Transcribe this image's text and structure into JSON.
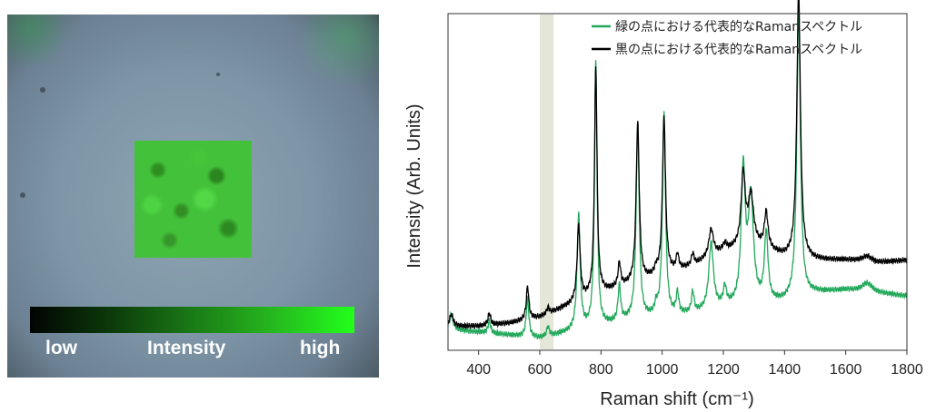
{
  "image_panel": {
    "colorbar_labels": {
      "low": "low",
      "mid": "Intensity",
      "high": "high"
    }
  },
  "chart_data": {
    "type": "line",
    "xlabel": "Raman shift (cm⁻¹)",
    "ylabel": "Intensity (Arb. Units)",
    "xlim": [
      300,
      1800
    ],
    "x_ticks": [
      400,
      600,
      800,
      1000,
      1200,
      1400,
      1600,
      1800
    ],
    "y_ticks": [],
    "grid": false,
    "legend_position": "top-right",
    "highlight_band": {
      "x0": 600,
      "x1": 645,
      "color": "#e4e6d8"
    },
    "series": [
      {
        "name": "緑の点における代表的なRamanスペクトル",
        "color": "#22a85a",
        "baseline": [
          [
            300,
            0.04
          ],
          [
            400,
            0.03
          ],
          [
            500,
            0.02
          ],
          [
            600,
            0.01
          ],
          [
            700,
            0.03
          ],
          [
            800,
            0.05
          ],
          [
            900,
            0.07
          ],
          [
            1000,
            0.08
          ],
          [
            1100,
            0.09
          ],
          [
            1200,
            0.11
          ],
          [
            1300,
            0.12
          ],
          [
            1400,
            0.13
          ],
          [
            1500,
            0.16
          ],
          [
            1600,
            0.17
          ],
          [
            1700,
            0.16
          ],
          [
            1800,
            0.15
          ]
        ],
        "peaks": [
          [
            311,
            0.05,
            7
          ],
          [
            435,
            0.04,
            5
          ],
          [
            560,
            0.13,
            5
          ],
          [
            627,
            0.03,
            5
          ],
          [
            727,
            0.38,
            6
          ],
          [
            783,
            0.88,
            5
          ],
          [
            860,
            0.12,
            5
          ],
          [
            920,
            0.64,
            6
          ],
          [
            980,
            0.03,
            5
          ],
          [
            1006,
            0.67,
            6
          ],
          [
            1050,
            0.07,
            5
          ],
          [
            1100,
            0.07,
            5
          ],
          [
            1160,
            0.22,
            9
          ],
          [
            1205,
            0.06,
            6
          ],
          [
            1265,
            0.44,
            8
          ],
          [
            1290,
            0.35,
            10
          ],
          [
            1340,
            0.23,
            7
          ],
          [
            1446,
            0.95,
            7
          ],
          [
            1670,
            0.03,
            20
          ]
        ]
      },
      {
        "name": "黒の点における代表的なRamanスペクトル",
        "color": "#000000",
        "baseline": [
          [
            300,
            0.05
          ],
          [
            400,
            0.05
          ],
          [
            500,
            0.06
          ],
          [
            600,
            0.08
          ],
          [
            700,
            0.12
          ],
          [
            800,
            0.16
          ],
          [
            900,
            0.19
          ],
          [
            1000,
            0.22
          ],
          [
            1100,
            0.25
          ],
          [
            1200,
            0.3
          ],
          [
            1300,
            0.32
          ],
          [
            1400,
            0.28
          ],
          [
            1500,
            0.27
          ],
          [
            1600,
            0.27
          ],
          [
            1700,
            0.26
          ],
          [
            1800,
            0.27
          ]
        ],
        "peaks": [
          [
            311,
            0.04,
            7
          ],
          [
            435,
            0.04,
            5
          ],
          [
            560,
            0.11,
            5
          ],
          [
            627,
            0.02,
            5
          ],
          [
            727,
            0.25,
            6
          ],
          [
            783,
            0.76,
            5
          ],
          [
            860,
            0.08,
            5
          ],
          [
            920,
            0.53,
            6
          ],
          [
            980,
            0.02,
            5
          ],
          [
            1006,
            0.52,
            6
          ],
          [
            1050,
            0.05,
            5
          ],
          [
            1100,
            0.04,
            5
          ],
          [
            1160,
            0.09,
            9
          ],
          [
            1205,
            0.02,
            6
          ],
          [
            1265,
            0.24,
            8
          ],
          [
            1290,
            0.16,
            10
          ],
          [
            1340,
            0.12,
            7
          ],
          [
            1446,
            0.89,
            7
          ],
          [
            1670,
            0.02,
            20
          ]
        ]
      }
    ]
  }
}
